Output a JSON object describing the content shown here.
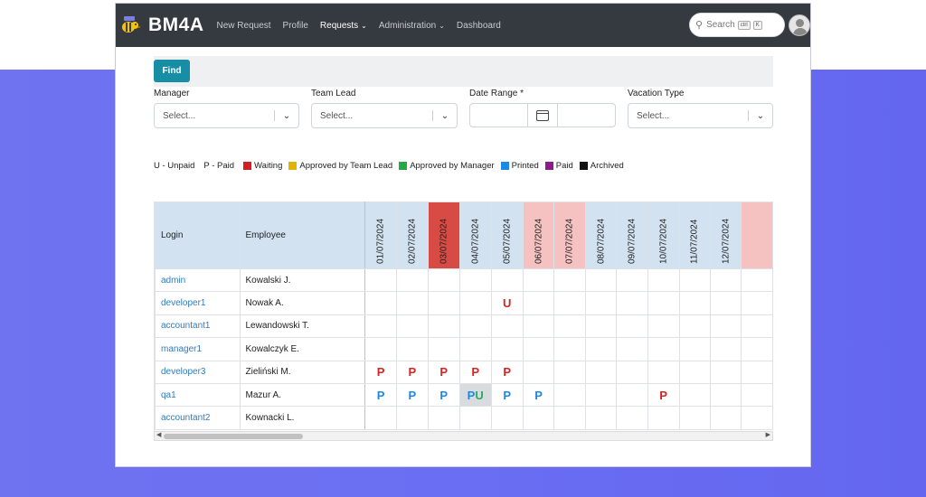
{
  "app": {
    "brand": "BM4A"
  },
  "nav": {
    "items": [
      {
        "label": "New Request",
        "active": false,
        "dropdown": false
      },
      {
        "label": "Profile",
        "active": false,
        "dropdown": false
      },
      {
        "label": "Requests",
        "active": true,
        "dropdown": true
      },
      {
        "label": "Administration",
        "active": false,
        "dropdown": true
      },
      {
        "label": "Dashboard",
        "active": false,
        "dropdown": false
      }
    ],
    "search_label": "Search",
    "search_key1": "ctrl",
    "search_key2": "K"
  },
  "filters": {
    "find_label": "Find",
    "manager_label": "Manager",
    "manager_placeholder": "Select...",
    "teamlead_label": "Team Lead",
    "teamlead_placeholder": "Select...",
    "daterange_label": "Date Range *",
    "vacation_label": "Vacation Type",
    "vacation_placeholder": "Select..."
  },
  "legend": {
    "unpaid": "U - Unpaid",
    "paid": "P - Paid",
    "items": [
      {
        "label": "Waiting",
        "color": "#d21f1f"
      },
      {
        "label": "Approved by Team Lead",
        "color": "#e0b400"
      },
      {
        "label": "Approved by Manager",
        "color": "#28a745"
      },
      {
        "label": "Printed",
        "color": "#1e88e5"
      },
      {
        "label": "Paid",
        "color": "#8e1b8e"
      },
      {
        "label": "Archived",
        "color": "#111111"
      }
    ]
  },
  "table": {
    "col_login": "Login",
    "col_employee": "Employee",
    "dates": [
      {
        "label": "01/07/2024",
        "style": ""
      },
      {
        "label": "02/07/2024",
        "style": ""
      },
      {
        "label": "03/07/2024",
        "style": "red"
      },
      {
        "label": "04/07/2024",
        "style": ""
      },
      {
        "label": "05/07/2024",
        "style": ""
      },
      {
        "label": "06/07/2024",
        "style": "pink"
      },
      {
        "label": "07/07/2024",
        "style": "pink"
      },
      {
        "label": "08/07/2024",
        "style": ""
      },
      {
        "label": "09/07/2024",
        "style": ""
      },
      {
        "label": "10/07/2024",
        "style": ""
      },
      {
        "label": "11/07/2024",
        "style": ""
      },
      {
        "label": "12/07/2024",
        "style": ""
      },
      {
        "label": "",
        "style": "pink"
      }
    ],
    "rows": [
      {
        "login": "admin",
        "employee": "Kowalski J.",
        "cells": [
          "",
          "",
          "",
          "",
          "",
          "",
          "",
          "",
          "",
          "",
          "",
          "",
          ""
        ]
      },
      {
        "login": "developer1",
        "employee": "Nowak A.",
        "cells": [
          "",
          "",
          "",
          "",
          "U|red",
          "",
          "",
          "",
          "",
          "",
          "",
          "",
          ""
        ]
      },
      {
        "login": "accountant1",
        "employee": "Lewandowski T.",
        "cells": [
          "",
          "",
          "",
          "",
          "",
          "",
          "",
          "",
          "",
          "",
          "",
          "",
          ""
        ]
      },
      {
        "login": "manager1",
        "employee": "Kowalczyk E.",
        "cells": [
          "",
          "",
          "",
          "",
          "",
          "",
          "",
          "",
          "",
          "",
          "",
          "",
          ""
        ]
      },
      {
        "login": "developer3",
        "employee": "Zieliński M.",
        "cells": [
          "P|red",
          "P|red",
          "P|red",
          "P|red",
          "P|red",
          "",
          "",
          "",
          "",
          "",
          "",
          "",
          ""
        ]
      },
      {
        "login": "qa1",
        "employee": "Mazur A.",
        "cells": [
          "P|blue",
          "P|blue",
          "P|blue",
          "PU|mix",
          "P|blue",
          "P|blue",
          "",
          "",
          "",
          "P|red",
          "",
          "",
          ""
        ]
      },
      {
        "login": "accountant2",
        "employee": "Kownacki L.",
        "cells": [
          "",
          "",
          "",
          "",
          "",
          "",
          "",
          "",
          "",
          "",
          "",
          "",
          ""
        ]
      }
    ]
  }
}
